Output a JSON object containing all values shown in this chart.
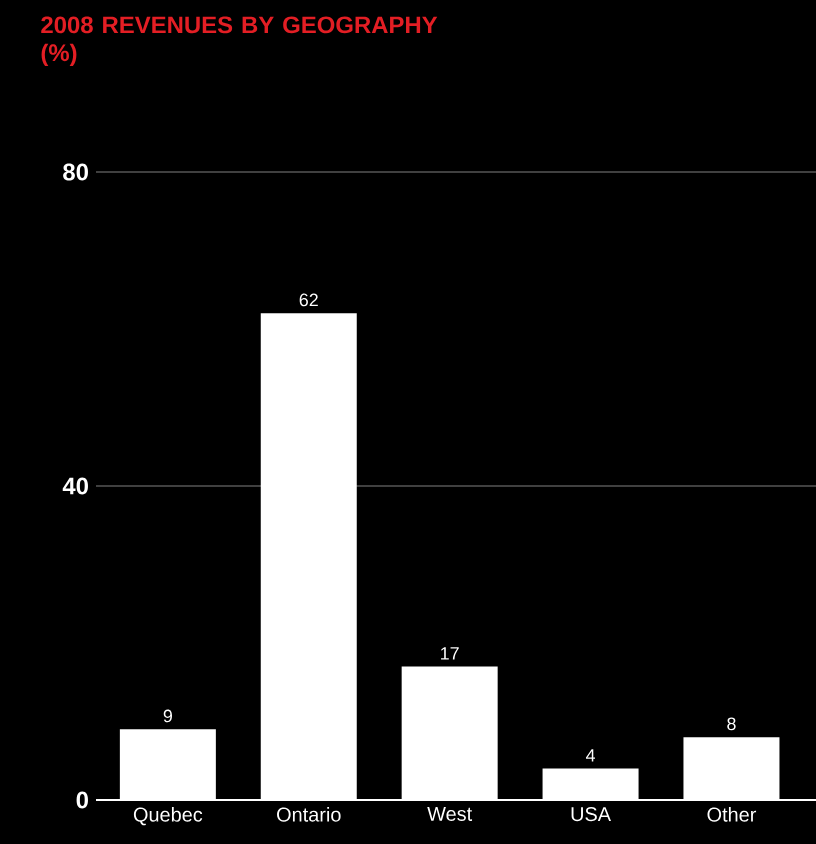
{
  "chart_data": {
    "type": "bar",
    "title": "2008 REVENUES BY GEOGRAPHY (%)",
    "categories": [
      "Quebec",
      "Ontario",
      "West",
      "USA",
      "Other"
    ],
    "values": [
      9,
      62,
      17,
      4,
      8
    ],
    "color": "#ffffff",
    "ylim": [
      0,
      80
    ],
    "yticks": [
      0,
      40,
      80
    ],
    "grid": "y",
    "data_labels": true
  }
}
